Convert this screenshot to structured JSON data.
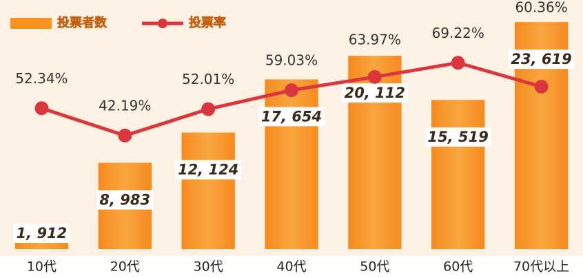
{
  "chart_data": {
    "type": "bar_line",
    "categories": [
      "10代",
      "20代",
      "30代",
      "40代",
      "50代",
      "60代",
      "70代以上"
    ],
    "series": [
      {
        "name": "投票者数",
        "type": "bar",
        "axis": "y",
        "color": "#f7931e",
        "values": [
          1912,
          8983,
          12124,
          17654,
          20112,
          15519,
          23619
        ],
        "value_labels": [
          "1, 912",
          "8, 983",
          "12, 124",
          "17, 654",
          "20, 112",
          "15, 519",
          "23, 619"
        ]
      },
      {
        "name": "投票率",
        "type": "line",
        "axis": "y2",
        "color": "#d9363e",
        "values": [
          52.34,
          42.19,
          52.01,
          59.03,
          63.97,
          69.22,
          60.36
        ],
        "value_labels": [
          "52.34%",
          "42.19%",
          "52.01%",
          "59.03%",
          "63.97%",
          "69.22%",
          "60.36%"
        ]
      }
    ],
    "ylim": [
      0,
      25200
    ],
    "y2lim": [
      0,
      90
    ],
    "legend": "top-left"
  }
}
